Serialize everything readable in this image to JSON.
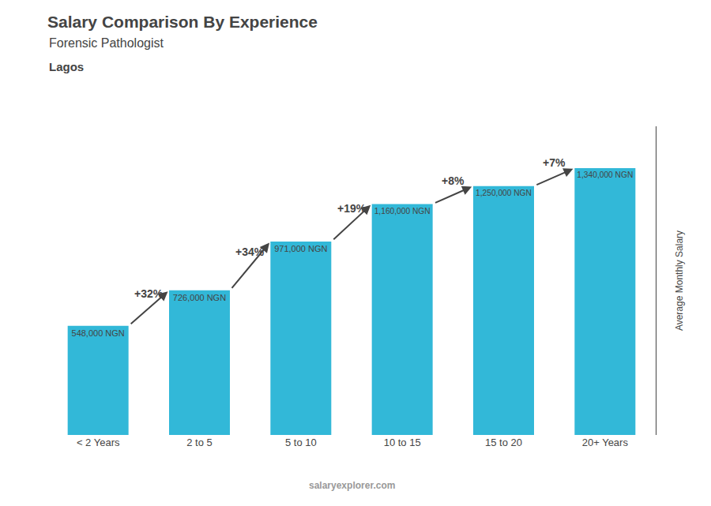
{
  "chart_data": {
    "type": "bar",
    "title": "Salary Comparison By Experience",
    "subtitle": "Forensic Pathologist",
    "annotations": [
      "Lagos",
      "salaryexplorer.com"
    ],
    "ylabel": "Average Monthly Salary",
    "categories": [
      "< 2 Years",
      "2 to 5",
      "5 to 10",
      "10 to 15",
      "15 to 20",
      "20+ Years"
    ],
    "values": [
      548000,
      726000,
      971000,
      1160000,
      1250000,
      1340000
    ],
    "value_labels": [
      "548,000 NGN",
      "726,000 NGN",
      "971,000 NGN",
      "1,160,000 NGN",
      "1,250,000 NGN",
      "1,340,000 NGN"
    ],
    "data_labels": true,
    "pct_changes": [
      null,
      "+32%",
      "+34%",
      "+19%",
      "+8%",
      "+7%"
    ],
    "color": "#32b8d8",
    "ylim": [
      0,
      1550000
    ],
    "grid": false,
    "tick_labels": "x"
  }
}
